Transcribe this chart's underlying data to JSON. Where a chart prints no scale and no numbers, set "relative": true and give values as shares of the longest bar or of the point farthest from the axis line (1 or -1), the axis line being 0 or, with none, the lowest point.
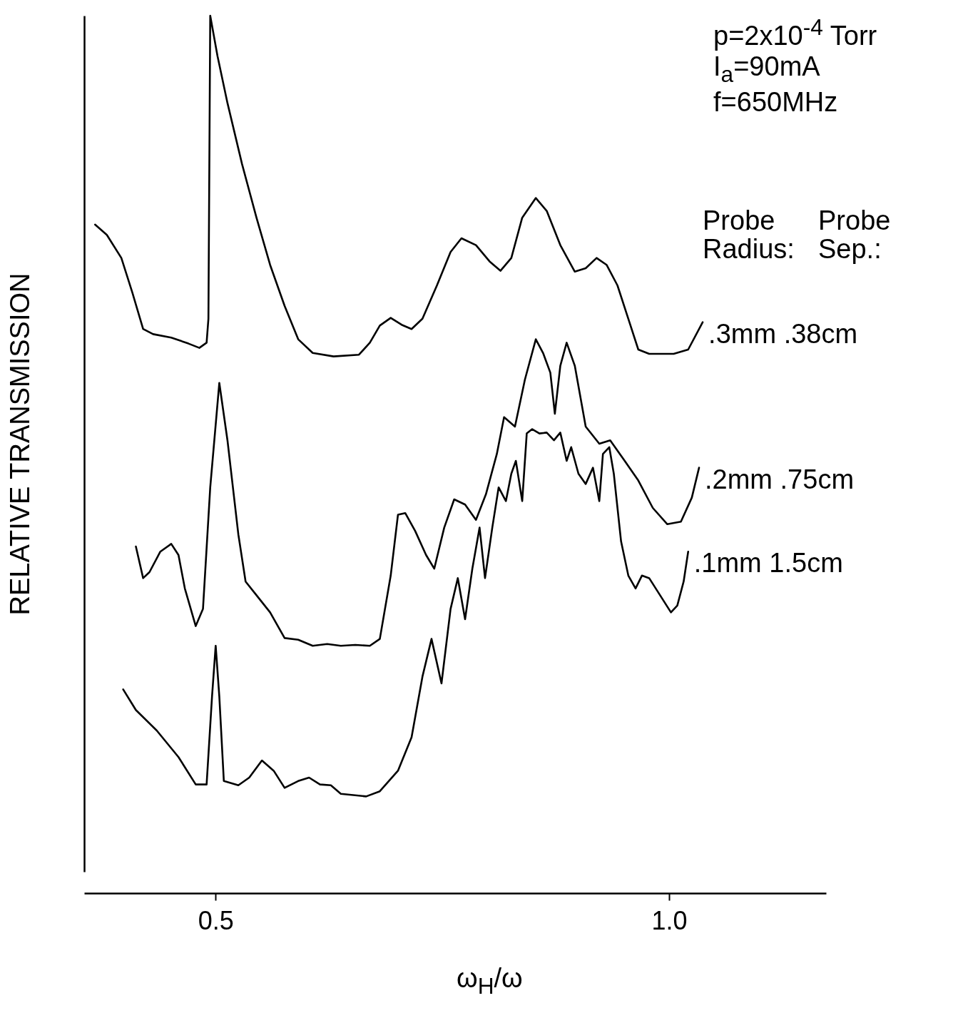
{
  "chart_data": {
    "type": "line",
    "xlabel": "ω$_{H}$/ω",
    "ylabel": "RELATIVE TRANSMISSION",
    "relative": true,
    "legend": false,
    "grid": false,
    "marker": "none",
    "line_style": "solid",
    "xlim": [
      0.355,
      1.173
    ],
    "xticks": [
      0.5,
      {
        "value": 1,
        "label": "1.0"
      }
    ],
    "annotations": [
      "p=2x10$^{-4}$ Torr",
      "I$_{a}$=90mA",
      "f=650MHz",
      "Probe Radius:",
      "Probe Sep.:"
    ],
    "series": [
      {
        "name": ".3mm .38cm",
        "color": "#000000",
        "x": [
          0.367,
          0.38,
          0.396,
          0.408,
          0.42,
          0.431,
          0.451,
          0.47,
          0.482,
          0.49,
          0.492,
          0.494,
          0.502,
          0.513,
          0.529,
          0.545,
          0.56,
          0.576,
          0.591,
          0.607,
          0.63,
          0.658,
          0.67,
          0.681,
          0.693,
          0.705,
          0.716,
          0.728,
          0.744,
          0.759,
          0.771,
          0.787,
          0.802,
          0.814,
          0.826,
          0.838,
          0.853,
          0.865,
          0.88,
          0.896,
          0.908,
          0.92,
          0.931,
          0.943,
          0.955,
          0.966,
          0.978,
          1.005,
          1.021,
          1.037
        ],
        "values": [
          0.756,
          0.744,
          0.717,
          0.677,
          0.634,
          0.628,
          0.624,
          0.617,
          0.612,
          0.618,
          0.646,
          1.0,
          0.953,
          0.898,
          0.827,
          0.764,
          0.709,
          0.661,
          0.622,
          0.606,
          0.602,
          0.604,
          0.618,
          0.638,
          0.647,
          0.639,
          0.634,
          0.646,
          0.685,
          0.724,
          0.74,
          0.732,
          0.713,
          0.702,
          0.717,
          0.764,
          0.787,
          0.772,
          0.732,
          0.701,
          0.705,
          0.717,
          0.709,
          0.685,
          0.646,
          0.61,
          0.605,
          0.605,
          0.61,
          0.642
        ]
      },
      {
        "name": ".2mm .75cm",
        "color": "#000000",
        "x": [
          0.412,
          0.42,
          0.427,
          0.439,
          0.451,
          0.459,
          0.466,
          0.478,
          0.486,
          0.494,
          0.504,
          0.513,
          0.525,
          0.533,
          0.545,
          0.56,
          0.576,
          0.591,
          0.607,
          0.623,
          0.638,
          0.654,
          0.67,
          0.681,
          0.693,
          0.701,
          0.709,
          0.72,
          0.732,
          0.741,
          0.752,
          0.763,
          0.775,
          0.787,
          0.798,
          0.81,
          0.818,
          0.83,
          0.841,
          0.853,
          0.861,
          0.869,
          0.874,
          0.88,
          0.887,
          0.896,
          0.908,
          0.923,
          0.935,
          0.951,
          0.966,
          0.982,
          0.998,
          1.013,
          1.025,
          1.033
        ],
        "values": [
          0.38,
          0.343,
          0.35,
          0.374,
          0.383,
          0.37,
          0.331,
          0.287,
          0.307,
          0.449,
          0.571,
          0.504,
          0.394,
          0.339,
          0.323,
          0.303,
          0.273,
          0.271,
          0.264,
          0.266,
          0.264,
          0.265,
          0.264,
          0.272,
          0.346,
          0.417,
          0.419,
          0.398,
          0.37,
          0.354,
          0.402,
          0.435,
          0.429,
          0.411,
          0.441,
          0.488,
          0.531,
          0.52,
          0.575,
          0.622,
          0.606,
          0.583,
          0.535,
          0.591,
          0.618,
          0.591,
          0.52,
          0.5,
          0.504,
          0.48,
          0.457,
          0.425,
          0.406,
          0.409,
          0.437,
          0.472
        ]
      },
      {
        "name": ".1mm 1.5cm",
        "color": "#000000",
        "x": [
          0.398,
          0.412,
          0.435,
          0.459,
          0.478,
          0.49,
          0.496,
          0.5,
          0.504,
          0.509,
          0.525,
          0.537,
          0.551,
          0.564,
          0.576,
          0.591,
          0.603,
          0.615,
          0.627,
          0.638,
          0.666,
          0.681,
          0.701,
          0.716,
          0.728,
          0.738,
          0.749,
          0.759,
          0.767,
          0.775,
          0.783,
          0.791,
          0.797,
          0.805,
          0.812,
          0.82,
          0.826,
          0.831,
          0.838,
          0.843,
          0.849,
          0.857,
          0.865,
          0.873,
          0.88,
          0.887,
          0.892,
          0.9,
          0.908,
          0.916,
          0.923,
          0.927,
          0.934,
          0.939,
          0.947,
          0.955,
          0.963,
          0.97,
          0.978,
          0.99,
          1.002,
          1.009,
          1.016,
          1.021
        ],
        "values": [
          0.213,
          0.189,
          0.165,
          0.134,
          0.102,
          0.102,
          0.205,
          0.264,
          0.205,
          0.106,
          0.101,
          0.11,
          0.13,
          0.118,
          0.098,
          0.106,
          0.11,
          0.102,
          0.101,
          0.091,
          0.088,
          0.094,
          0.118,
          0.157,
          0.228,
          0.272,
          0.22,
          0.307,
          0.343,
          0.295,
          0.354,
          0.402,
          0.343,
          0.402,
          0.449,
          0.433,
          0.465,
          0.48,
          0.433,
          0.512,
          0.517,
          0.512,
          0.513,
          0.504,
          0.513,
          0.48,
          0.496,
          0.465,
          0.453,
          0.472,
          0.433,
          0.488,
          0.496,
          0.465,
          0.386,
          0.346,
          0.331,
          0.346,
          0.343,
          0.323,
          0.303,
          0.311,
          0.339,
          0.374
        ]
      }
    ]
  }
}
